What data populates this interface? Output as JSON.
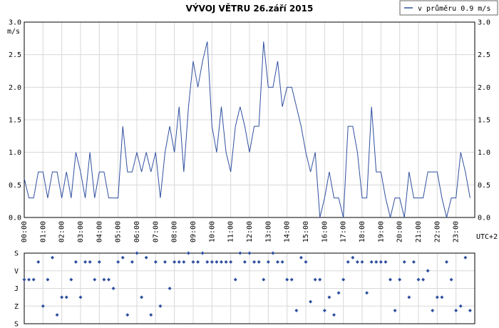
{
  "chart_data": [
    {
      "type": "line",
      "title": "VÝVOJ VĚTRU  26.září 2015",
      "y_label": "m/s",
      "x_label": "UTC+2",
      "grid": true,
      "legend": "top-right",
      "x": [
        0,
        0.25,
        0.5,
        0.75,
        1,
        1.25,
        1.5,
        1.75,
        2,
        2.25,
        2.5,
        2.75,
        3,
        3.25,
        3.5,
        3.75,
        4,
        4.25,
        4.5,
        4.75,
        5,
        5.25,
        5.5,
        5.75,
        6,
        6.25,
        6.5,
        6.75,
        7,
        7.25,
        7.5,
        7.75,
        8,
        8.25,
        8.5,
        8.75,
        9,
        9.25,
        9.5,
        9.75,
        10,
        10.25,
        10.5,
        10.75,
        11,
        11.25,
        11.5,
        11.75,
        12,
        12.25,
        12.5,
        12.75,
        13,
        13.25,
        13.5,
        13.75,
        14,
        14.25,
        14.5,
        14.75,
        15,
        15.25,
        15.5,
        15.75,
        16,
        16.25,
        16.5,
        16.75,
        17,
        17.25,
        17.5,
        17.75,
        18,
        18.25,
        18.5,
        18.75,
        19,
        19.25,
        19.5,
        19.75,
        20,
        20.25,
        20.5,
        20.75,
        21,
        21.25,
        21.5,
        21.75,
        22,
        22.25,
        22.5,
        22.75,
        23,
        23.25,
        23.5,
        23.75
      ],
      "series": [
        {
          "name": "v průměru 0.9 m/s",
          "color": "#2f4f9f",
          "values": [
            0.6,
            0.3,
            0.3,
            0.7,
            0.7,
            0.3,
            0.7,
            0.7,
            0.3,
            0.7,
            0.3,
            1.0,
            0.7,
            0.3,
            1.0,
            0.3,
            0.7,
            0.7,
            0.3,
            0.3,
            0.3,
            1.4,
            0.7,
            0.7,
            1.0,
            0.7,
            1.0,
            0.7,
            1.0,
            0.3,
            1.0,
            1.4,
            1.0,
            1.7,
            0.7,
            1.7,
            2.4,
            2.0,
            2.4,
            2.7,
            1.4,
            1.0,
            1.7,
            1.0,
            0.7,
            1.4,
            1.7,
            1.4,
            1.0,
            1.4,
            1.4,
            2.7,
            2.0,
            2.0,
            2.4,
            1.7,
            2.0,
            2.0,
            1.7,
            1.4,
            1.0,
            0.7,
            1.0,
            0.0,
            0.3,
            0.7,
            0.3,
            0.3,
            0.0,
            1.4,
            1.4,
            1.0,
            0.3,
            0.3,
            1.7,
            0.7,
            0.7,
            0.3,
            0.0,
            0.3,
            0.3,
            0.0,
            0.7,
            0.3,
            0.3,
            0.3,
            0.7,
            0.7,
            0.7,
            0.3,
            0.0,
            0.3,
            0.3,
            1.0,
            0.7,
            0.3
          ]
        }
      ],
      "xlim": [
        0,
        24
      ],
      "xticks": [
        {
          "value": 0,
          "label": "00:00"
        },
        {
          "value": 1,
          "label": "01:00"
        },
        {
          "value": 2,
          "label": "02:00"
        },
        {
          "value": 3,
          "label": "03:00"
        },
        {
          "value": 4,
          "label": "04:00"
        },
        {
          "value": 5,
          "label": "05:00"
        },
        {
          "value": 6,
          "label": "06:00"
        },
        {
          "value": 7,
          "label": "07:00"
        },
        {
          "value": 8,
          "label": "08:00"
        },
        {
          "value": 9,
          "label": "09:00"
        },
        {
          "value": 10,
          "label": "10:00"
        },
        {
          "value": 11,
          "label": "11:00"
        },
        {
          "value": 12,
          "label": "12:00"
        },
        {
          "value": 13,
          "label": "13:00"
        },
        {
          "value": 14,
          "label": "14:00"
        },
        {
          "value": 15,
          "label": "15:00"
        },
        {
          "value": 16,
          "label": "16:00"
        },
        {
          "value": 17,
          "label": "17:00"
        },
        {
          "value": 18,
          "label": "18:00"
        },
        {
          "value": 19,
          "label": "19:00"
        },
        {
          "value": 20,
          "label": "20:00"
        },
        {
          "value": 21,
          "label": "21:00"
        },
        {
          "value": 22,
          "label": "22:00"
        },
        {
          "value": 23,
          "label": "23:00"
        }
      ],
      "ylim": [
        0,
        3
      ],
      "yticks": [
        {
          "value": 0,
          "label": "0.0"
        },
        {
          "value": 0.5,
          "label": "0.5"
        },
        {
          "value": 1,
          "label": "1.0"
        },
        {
          "value": 1.5,
          "label": "1.5"
        },
        {
          "value": 2,
          "label": "2.0"
        },
        {
          "value": 2.5,
          "label": "2.5"
        },
        {
          "value": 3,
          "label": "3.0"
        }
      ]
    },
    {
      "type": "scatter",
      "color": "#2f4f9f",
      "grid": true,
      "y_inverted": true,
      "x": [
        0,
        0.25,
        0.5,
        0.75,
        1,
        1.25,
        1.5,
        1.75,
        2,
        2.25,
        2.5,
        2.75,
        3,
        3.25,
        3.5,
        3.75,
        4,
        4.25,
        4.5,
        4.75,
        5,
        5.25,
        5.5,
        5.75,
        6,
        6.25,
        6.5,
        6.75,
        7,
        7.25,
        7.5,
        7.75,
        8,
        8.25,
        8.5,
        8.75,
        9,
        9.25,
        9.5,
        9.75,
        10,
        10.25,
        10.5,
        10.75,
        11,
        11.25,
        11.5,
        11.75,
        12,
        12.25,
        12.5,
        12.75,
        13,
        13.25,
        13.5,
        13.75,
        14,
        14.25,
        14.5,
        14.75,
        15,
        15.25,
        15.5,
        15.75,
        16,
        16.25,
        16.5,
        16.75,
        17,
        17.25,
        17.5,
        17.75,
        18,
        18.25,
        18.5,
        18.75,
        19,
        19.25,
        19.5,
        19.75,
        20,
        20.25,
        20.5,
        20.75,
        21,
        21.25,
        21.5,
        21.75,
        22,
        22.25,
        22.5,
        22.75,
        23,
        23.25,
        23.5,
        23.75
      ],
      "values": [
        135,
        135,
        135,
        45,
        270,
        135,
        22.5,
        315,
        225,
        225,
        135,
        45,
        225,
        45,
        45,
        135,
        45,
        135,
        135,
        180,
        45,
        22.5,
        315,
        45,
        0,
        225,
        22.5,
        315,
        45,
        270,
        45,
        180,
        45,
        45,
        45,
        0,
        45,
        45,
        0,
        45,
        45,
        45,
        45,
        45,
        45,
        135,
        0,
        45,
        0,
        45,
        45,
        135,
        45,
        0,
        45,
        45,
        135,
        135,
        292.5,
        22.5,
        45,
        247.5,
        135,
        135,
        292.5,
        225,
        315,
        202.5,
        135,
        45,
        22.5,
        45,
        45,
        202.5,
        45,
        45,
        45,
        45,
        135,
        292.5,
        135,
        45,
        225,
        45,
        135,
        135,
        90,
        292.5,
        225,
        225,
        45,
        135,
        292.5,
        270,
        22.5,
        292.5
      ],
      "xlim": [
        0,
        24
      ],
      "ylim": [
        0,
        360
      ],
      "yticks": [
        {
          "value": 0,
          "label": "S"
        },
        {
          "value": 90,
          "label": "V"
        },
        {
          "value": 180,
          "label": "J"
        },
        {
          "value": 270,
          "label": "Z"
        },
        {
          "value": 360,
          "label": "S"
        }
      ]
    }
  ]
}
